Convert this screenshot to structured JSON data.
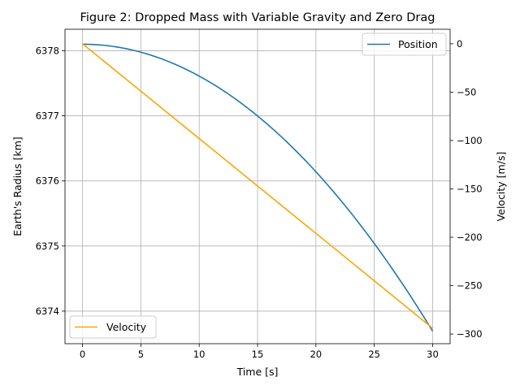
{
  "chart_data": {
    "type": "line",
    "title": "Figure 2: Dropped Mass with Variable Gravity and Zero Drag",
    "xlabel": "Time [s]",
    "ylabel_left": "Earth's Radius [km]",
    "ylabel_right": "Velocity [m/s]",
    "xlim": [
      -1.5,
      31.5
    ],
    "ylim_left": [
      6373.5,
      6378.33
    ],
    "ylim_right": [
      -310,
      15
    ],
    "xticks": [
      0,
      5,
      10,
      15,
      20,
      25,
      30
    ],
    "yticks_left": [
      6374,
      6375,
      6376,
      6377,
      6378
    ],
    "yticks_right": [
      0,
      -50,
      -100,
      -150,
      -200,
      -250,
      -300
    ],
    "grid": true,
    "series": [
      {
        "name": "Position",
        "axis": "left",
        "color": "#1f77b4",
        "legend": "top-right",
        "x": [
          0,
          2.5,
          5,
          7.5,
          10,
          12.5,
          15,
          17.5,
          20,
          22.5,
          25,
          27.5,
          30
        ],
        "y": [
          6378.1,
          6378.069,
          6377.977,
          6377.824,
          6377.609,
          6377.334,
          6376.997,
          6376.599,
          6376.139,
          6375.619,
          6375.038,
          6374.395,
          6373.692
        ]
      },
      {
        "name": "Velocity",
        "axis": "right",
        "color": "#ffa500",
        "legend": "bottom-left",
        "x": [
          0,
          30
        ],
        "y": [
          0,
          -294
        ]
      }
    ]
  }
}
